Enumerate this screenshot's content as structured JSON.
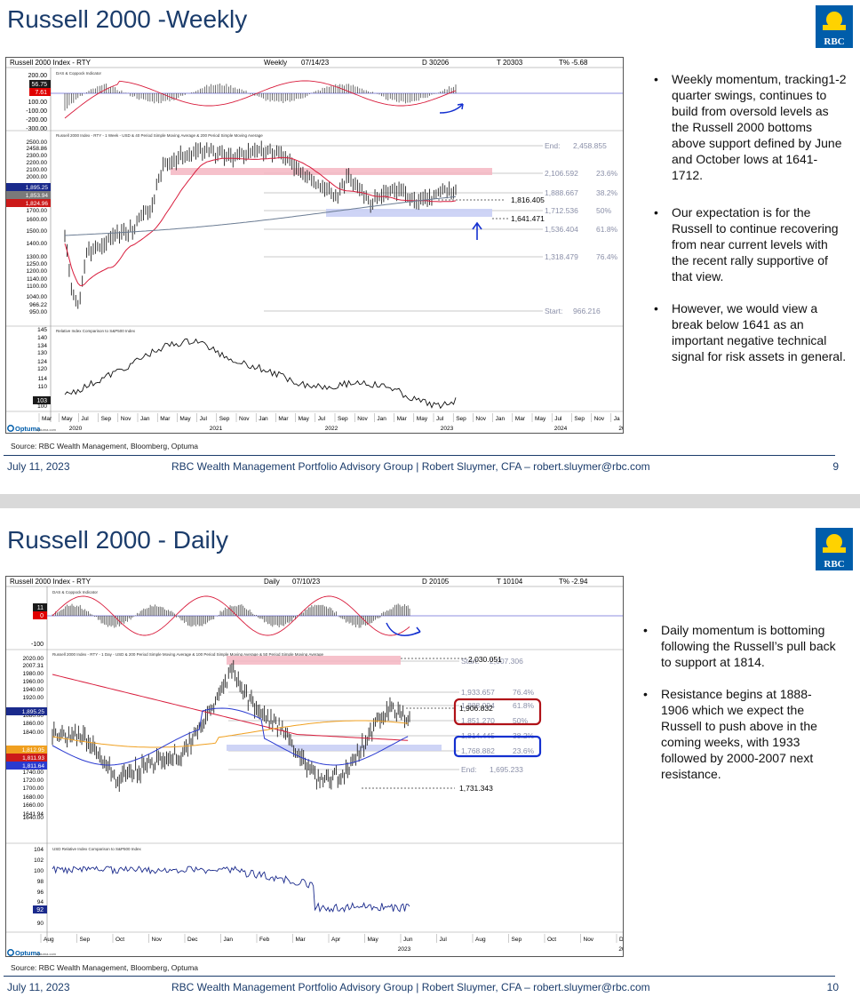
{
  "slides": [
    {
      "title": "Russell 2000 -Weekly",
      "logo_text": "RBC",
      "chart": {
        "header": {
          "name": "Russell 2000 Index - RTY",
          "period": "Weekly",
          "date": "07/14/23",
          "d": "D 30206",
          "t": "T 20303",
          "tpct": "T% -5.68"
        },
        "momentum_title": "DAS & Coppock Indicator",
        "momentum_ticks": [
          "200.00",
          "100.00",
          "-100.00",
          "-200.00",
          "-300.00"
        ],
        "momentum_tags": [
          {
            "text": "56.75",
            "color": "#1a1a1a"
          },
          {
            "text": "7.61",
            "color": "#e00000"
          }
        ],
        "price_title": "Russell 2000 Index - RTY - 1 Week - USD & 40 Period Simple Moving Average & 200 Period Simple Moving Average",
        "price_ticks": [
          "2500.00",
          "2458.86",
          "2300.00",
          "2200.00",
          "2100.00",
          "2000.00",
          "1700.00",
          "1600.00",
          "1500.00",
          "1400.00",
          "1300.00",
          "1250.00",
          "1200.00",
          "1140.00",
          "1100.00",
          "1040.00",
          "966.22",
          "950.00"
        ],
        "price_tags": [
          {
            "text": "1,895.25",
            "color": "#1a2a8c"
          },
          {
            "text": "1,853.94",
            "color": "#7a7a7a"
          },
          {
            "text": "1,824.96",
            "color": "#cc1a1a"
          }
        ],
        "fib_levels": [
          {
            "value": "End:",
            "num": "2,458.855",
            "pct": ""
          },
          {
            "value": "",
            "num": "2,106.592",
            "pct": "23.6%"
          },
          {
            "value": "",
            "num": "1,888.667",
            "pct": "38.2%"
          },
          {
            "value": "",
            "num": "1,712.536",
            "pct": "50%"
          },
          {
            "value": "",
            "num": "1,536.404",
            "pct": "61.8%"
          },
          {
            "value": "",
            "num": "1,318.479",
            "pct": "76.4%"
          },
          {
            "value": "Start:",
            "num": "966.216",
            "pct": ""
          }
        ],
        "callouts": [
          "1,816.405",
          "1,641.471"
        ],
        "rel_title": "Relative Index Comparison to S&P500 Index",
        "rel_ticks": [
          "145",
          "140",
          "134",
          "130",
          "124",
          "120",
          "114",
          "110",
          "100"
        ],
        "rel_tag": "103",
        "x_months": [
          "Mar",
          "May",
          "Jul",
          "Sep",
          "Nov",
          "Jan",
          "Mar",
          "May",
          "Jul",
          "Sep",
          "Nov",
          "Jan",
          "Mar",
          "May",
          "Jul",
          "Sep",
          "Nov",
          "Jan",
          "Mar",
          "May",
          "Jul",
          "Sep",
          "Nov",
          "Jan",
          "Mar",
          "May",
          "Jul",
          "Sep",
          "Nov",
          "Ja"
        ],
        "x_years": [
          "2020",
          "2021",
          "2022",
          "2023",
          "2024",
          "20"
        ],
        "optuma": "Optuma",
        "optuma_url": "optuma.com"
      },
      "source": "Source: RBC Wealth Management, Bloomberg, Optuma",
      "bullets": [
        "Weekly momentum, tracking1-2 quarter swings, continues to build from oversold levels as the Russell 2000 bottoms above support defined by June and October lows at 1641-1712.",
        "Our expectation is for the Russell to continue recovering from near current levels with the recent rally supportive of that view.",
        "However, we would view a break below 1641 as an important negative technical signal for risk assets in general."
      ],
      "footer": {
        "date": "July 11, 2023",
        "center": "RBC Wealth Management Portfolio Advisory Group  |  Robert Sluymer, CFA – robert.sluymer@rbc.com",
        "page": "9"
      }
    },
    {
      "title": "Russell 2000 - Daily",
      "logo_text": "RBC",
      "chart": {
        "header": {
          "name": "Russell 2000 Index - RTY",
          "period": "Daily",
          "date": "07/10/23",
          "d": "D 20105",
          "t": "T 10104",
          "tpct": "T% -2.94"
        },
        "momentum_title": "DAS & Coppock Indicator",
        "momentum_ticks": [
          "-100"
        ],
        "momentum_tags": [
          {
            "text": "11",
            "color": "#1a1a1a"
          },
          {
            "text": "0",
            "color": "#e00000"
          }
        ],
        "price_title": "Russell 2000 Index - RTY - 1 Day - USD & 200 Period Simple Moving Average & 100 Period Simple Moving Average & 50 Period Simple Moving Average",
        "price_ticks": [
          "2020.00",
          "2007.31",
          "1980.00",
          "1960.00",
          "1940.00",
          "1920.00",
          "1880.00",
          "1860.00",
          "1840.00",
          "1780.00",
          "1760.00",
          "1740.00",
          "1720.00",
          "1700.00",
          "1680.00",
          "1660.00",
          "1641.94",
          "1640.00"
        ],
        "price_tags": [
          {
            "text": "1,895.25",
            "color": "#1a2a8c"
          },
          {
            "text": "1,812.95",
            "color": "#f0a020"
          },
          {
            "text": "1,811.93",
            "color": "#cc1a1a"
          },
          {
            "text": "1,811.64",
            "color": "#2a3ad0"
          }
        ],
        "fib_levels": [
          {
            "value": "Start:",
            "num": "2,007.306",
            "pct": ""
          },
          {
            "value": "",
            "num": "1,933.657",
            "pct": "76.4%"
          },
          {
            "value": "",
            "num": "1,888.094",
            "pct": "61.8%"
          },
          {
            "value": "",
            "num": "1,851.270",
            "pct": "50%"
          },
          {
            "value": "",
            "num": "1,814.445",
            "pct": "38.2%"
          },
          {
            "value": "",
            "num": "1,768.882",
            "pct": "23.6%"
          },
          {
            "value": "End:",
            "num": "1,695.233",
            "pct": ""
          }
        ],
        "callouts": [
          "2,030.051",
          "1,906.832",
          "1,731.343"
        ],
        "rel_title": "USD Relative Index Comparison to S&P500 Index",
        "rel_ticks": [
          "104",
          "102",
          "100",
          "98",
          "96",
          "94",
          "90"
        ],
        "rel_tag": "92",
        "x_months": [
          "Aug",
          "Sep",
          "Oct",
          "Nov",
          "Dec",
          "Jan",
          "Feb",
          "Mar",
          "Apr",
          "May",
          "Jun",
          "Jul",
          "Aug",
          "Sep",
          "Oct",
          "Nov",
          "Dec",
          "Ja"
        ],
        "x_years": [
          "2023",
          "20"
        ],
        "optuma": "Optuma",
        "optuma_url": "optuma.com"
      },
      "source": "Source: RBC Wealth Management, Bloomberg, Optuma",
      "bullets": [
        "Daily momentum is bottoming following the Russell’s pull back to support at 1814.",
        "Resistance begins at 1888-1906 which we expect the Russell to push above in the coming weeks, with 1933 followed by 2000-2007 next resistance."
      ],
      "footer": {
        "date": "July 11, 2023",
        "center": "RBC Wealth Management Portfolio Advisory Group  |  Robert Sluymer, CFA – robert.sluymer@rbc.com",
        "page": "10"
      }
    }
  ],
  "colors": {
    "navy": "#1b3c6b",
    "rbc_blue": "#005daa",
    "rbc_yellow": "#ffd200",
    "ma_red": "#d81b3b",
    "ma_gray": "#6b7c93",
    "ma_orange": "#f0a020",
    "ma_blue": "#2a3ad0",
    "zone_pink": "#f4b6c2",
    "zone_blue": "#c9cff5"
  }
}
